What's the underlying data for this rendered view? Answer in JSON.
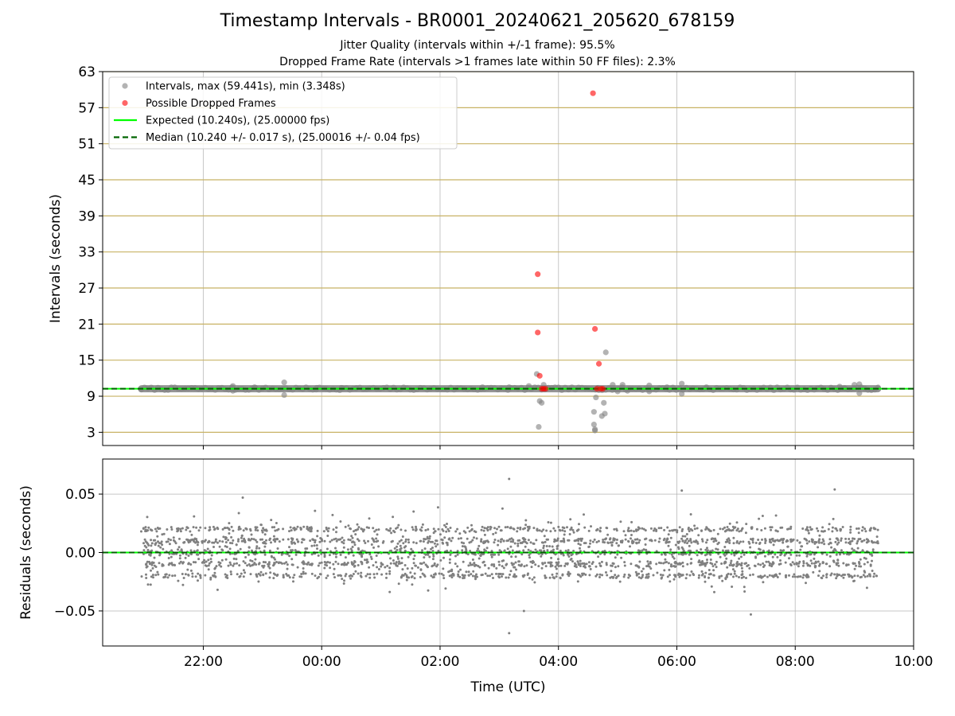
{
  "figure": {
    "title": "Timestamp Intervals - BR0001_20240621_205620_678159",
    "subtitle_lines": [
      "Jitter Quality (intervals within +/-1 frame): 95.5%",
      "Dropped Frame Rate (intervals >1 frames late within 50 FF files): 2.3%"
    ]
  },
  "colors": {
    "intervals": "#808080",
    "dropped": "#ff0000",
    "expected": "#00ff00",
    "median": "#006400",
    "frame_lines": "#c8b264",
    "grid": "#b0b0b0",
    "residuals": "#808080"
  },
  "chart_data": [
    {
      "type": "scatter",
      "name": "intervals-panel",
      "ylabel": "Intervals (seconds)",
      "xlabel": "",
      "ylim": [
        0.8,
        63
      ],
      "yticks": [
        3,
        9,
        15,
        21,
        27,
        33,
        39,
        45,
        51,
        57,
        63
      ],
      "xlim_hours": [
        -3.7,
        10.0
      ],
      "xticks": [
        "22:00",
        "00:00",
        "02:00",
        "04:00",
        "06:00",
        "08:00",
        "10:00"
      ],
      "xtick_hours": [
        -2,
        0,
        2,
        4,
        6,
        8,
        10
      ],
      "grid": true,
      "legend_position": "upper-left",
      "legend": [
        {
          "label": "Intervals, max (59.441s), min (3.348s)",
          "kind": "marker",
          "series": "intervals"
        },
        {
          "label": "Possible Dropped Frames",
          "kind": "marker",
          "series": "dropped"
        },
        {
          "label": "Expected (10.240s), (25.00000 fps)",
          "kind": "line",
          "series": "expected"
        },
        {
          "label": "Median (10.240 +/- 0.017 s), (25.00016 +/- 0.04 fps)",
          "kind": "dashed",
          "series": "median"
        }
      ],
      "expected_interval": 10.24,
      "median_interval": 10.24,
      "frame_interval_lines": [
        3,
        9,
        15,
        21,
        27,
        33,
        39,
        45,
        51,
        57,
        63
      ],
      "intervals_baseline": {
        "y": 10.24,
        "x_start": "20:57",
        "x_end": "09:24"
      },
      "intervals_outliers": [
        {
          "x": "22:30",
          "y": 10.7
        },
        {
          "x": "22:30",
          "y": 9.9
        },
        {
          "x": "22:52",
          "y": 10.5
        },
        {
          "x": "23:22",
          "y": 11.3
        },
        {
          "x": "23:22",
          "y": 9.2
        },
        {
          "x": "23:55",
          "y": 10.4
        },
        {
          "x": "00:20",
          "y": 10.4
        },
        {
          "x": "00:35",
          "y": 10.3
        },
        {
          "x": "02:43",
          "y": 10.5
        },
        {
          "x": "03:10",
          "y": 10.5
        },
        {
          "x": "03:30",
          "y": 10.7
        },
        {
          "x": "03:38",
          "y": 12.7
        },
        {
          "x": "03:40",
          "y": 3.9
        },
        {
          "x": "03:41",
          "y": 8.2
        },
        {
          "x": "03:43",
          "y": 7.9
        },
        {
          "x": "03:45",
          "y": 10.9
        },
        {
          "x": "04:36",
          "y": 4.3
        },
        {
          "x": "04:36",
          "y": 6.4
        },
        {
          "x": "04:37",
          "y": 3.5
        },
        {
          "x": "04:37",
          "y": 3.3
        },
        {
          "x": "04:38",
          "y": 8.8
        },
        {
          "x": "04:40",
          "y": 10.4
        },
        {
          "x": "04:44",
          "y": 5.7
        },
        {
          "x": "04:46",
          "y": 7.9
        },
        {
          "x": "04:47",
          "y": 6.1
        },
        {
          "x": "04:48",
          "y": 16.3
        },
        {
          "x": "04:55",
          "y": 10.9
        },
        {
          "x": "05:00",
          "y": 9.8
        },
        {
          "x": "05:05",
          "y": 10.9
        },
        {
          "x": "05:10",
          "y": 9.9
        },
        {
          "x": "05:32",
          "y": 10.8
        },
        {
          "x": "05:32",
          "y": 9.8
        },
        {
          "x": "05:50",
          "y": 10.5
        },
        {
          "x": "06:05",
          "y": 11.1
        },
        {
          "x": "06:05",
          "y": 9.4
        },
        {
          "x": "06:30",
          "y": 10.5
        },
        {
          "x": "08:45",
          "y": 10.6
        },
        {
          "x": "08:50",
          "y": 10.3
        },
        {
          "x": "09:00",
          "y": 10.9
        },
        {
          "x": "09:05",
          "y": 11.0
        },
        {
          "x": "09:05",
          "y": 9.5
        }
      ],
      "dropped_frames": [
        {
          "x": "03:39",
          "y": 29.3
        },
        {
          "x": "03:39",
          "y": 19.6
        },
        {
          "x": "03:41",
          "y": 12.4
        },
        {
          "x": "03:43",
          "y": 10.24
        },
        {
          "x": "03:45",
          "y": 10.24
        },
        {
          "x": "03:47",
          "y": 10.24
        },
        {
          "x": "04:35",
          "y": 59.4
        },
        {
          "x": "04:37",
          "y": 20.2
        },
        {
          "x": "04:39",
          "y": 10.24
        },
        {
          "x": "04:41",
          "y": 14.4
        },
        {
          "x": "04:43",
          "y": 10.24
        },
        {
          "x": "04:45",
          "y": 10.24
        }
      ]
    },
    {
      "type": "scatter",
      "name": "residuals-panel",
      "ylabel": "Residuals (seconds)",
      "xlabel": "Time (UTC)",
      "ylim": [
        -0.08,
        0.08
      ],
      "yticks": [
        0.05,
        0.0,
        -0.05
      ],
      "ytick_labels": [
        "0.05",
        "0.00",
        "−0.05"
      ],
      "xlim_hours": [
        -3.7,
        10.0
      ],
      "xticks": [
        "22:00",
        "00:00",
        "02:00",
        "04:00",
        "06:00",
        "08:00",
        "10:00"
      ],
      "xtick_hours": [
        -2,
        0,
        2,
        4,
        6,
        8,
        10
      ],
      "grid": true,
      "residual_spread": {
        "x_start": "20:57",
        "x_end": "09:24",
        "y_min": -0.04,
        "y_max": 0.04,
        "bands": [
          -0.02,
          -0.01,
          0.0,
          0.01,
          0.02
        ]
      },
      "residual_outliers": [
        {
          "x": "22:40",
          "y": 0.047
        },
        {
          "x": "03:10",
          "y": 0.063
        },
        {
          "x": "03:10",
          "y": -0.069
        },
        {
          "x": "03:25",
          "y": -0.05
        },
        {
          "x": "06:05",
          "y": 0.053
        },
        {
          "x": "07:15",
          "y": -0.053
        },
        {
          "x": "08:40",
          "y": 0.054
        }
      ]
    }
  ]
}
